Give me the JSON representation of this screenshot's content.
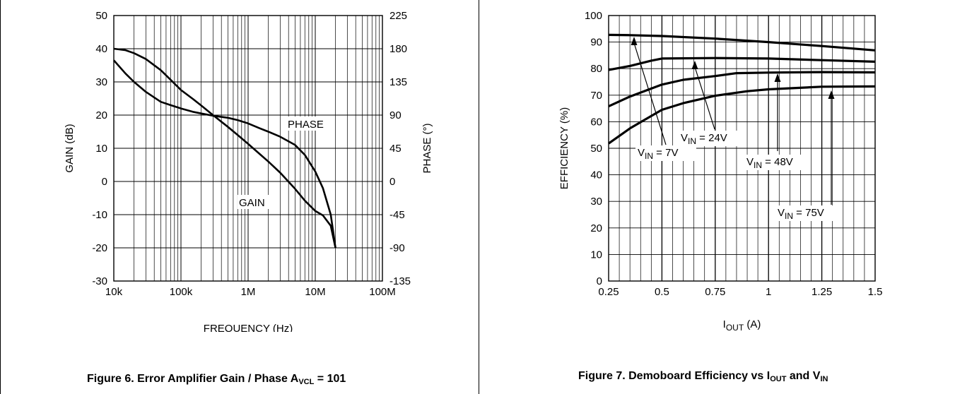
{
  "chart_data": [
    {
      "type": "line",
      "title": "Figure 6. Error Amplifier Gain / Phase A",
      "title_sub": "VCL",
      "title_tail": " = 101",
      "xlabel": "FREQUENCY (Hz)",
      "ylabel": "GAIN (dB)",
      "ylabel_right": "PHASE (°)",
      "xscale": "log",
      "xlim": [
        10000,
        100000000
      ],
      "ylim": [
        -30,
        50
      ],
      "ylim_right": [
        -135,
        225
      ],
      "grid": true,
      "x_tick_labels": [
        "10k",
        "100k",
        "1M",
        "10M",
        "100M"
      ],
      "y_tick_labels": [
        "50",
        "40",
        "30",
        "20",
        "10",
        "0",
        "-10",
        "-20",
        "-30"
      ],
      "y_right_tick_labels": [
        "225",
        "180",
        "135",
        "90",
        "45",
        "0",
        "-45",
        "-90",
        "-135"
      ],
      "series": [
        {
          "name": "GAIN",
          "axis": "left",
          "x": [
            10000,
            15000,
            20000,
            30000,
            50000,
            70000,
            100000,
            150000,
            200000,
            300000,
            500000,
            700000,
            1000000,
            1500000,
            2000000,
            3000000,
            5000000,
            7000000,
            10000000,
            13000000,
            17000000,
            20000000
          ],
          "y": [
            36.5,
            32.5,
            30,
            27,
            24,
            23,
            22,
            21,
            20.5,
            19.8,
            19.2,
            18.5,
            17.5,
            16,
            15,
            13.5,
            11,
            8,
            3,
            -2,
            -10,
            -20
          ]
        },
        {
          "name": "PHASE",
          "axis": "right",
          "x": [
            10000,
            15000,
            20000,
            30000,
            50000,
            70000,
            100000,
            150000,
            200000,
            300000,
            500000,
            700000,
            1000000,
            1500000,
            2000000,
            3000000,
            5000000,
            7000000,
            10000000,
            13000000,
            17000000,
            20000000
          ],
          "y": [
            180,
            178,
            174,
            166,
            151,
            138,
            124,
            112,
            103,
            90,
            74,
            63,
            51,
            37,
            27,
            12,
            -10,
            -26,
            -40,
            -46,
            -60,
            -90
          ]
        }
      ],
      "annotations": [
        "PHASE",
        "GAIN"
      ]
    },
    {
      "type": "line",
      "title": "Figure 7. Demoboard Efficiency vs I",
      "title_sub": "OUT",
      "title_mid": " and V",
      "title_sub2": "IN",
      "xlabel_main": "I",
      "xlabel_sub": "OUT",
      "xlabel_tail": " (A)",
      "ylabel": "EFFICIENCY (%)",
      "xlim": [
        0.25,
        1.5
      ],
      "ylim": [
        0,
        100
      ],
      "grid": true,
      "x_tick_labels": [
        "0.25",
        "0.5",
        "0.75",
        "1",
        "1.25",
        "1.5"
      ],
      "y_tick_labels": [
        "100",
        "90",
        "80",
        "70",
        "60",
        "50",
        "40",
        "30",
        "20",
        "10",
        "0"
      ],
      "series": [
        {
          "label_main": "V",
          "label_sub": "IN",
          "label_tail": " = 7V",
          "x": [
            0.25,
            0.35,
            0.5,
            0.75,
            1.0,
            1.25,
            1.5
          ],
          "y": [
            92.7,
            92.6,
            92.3,
            91.3,
            90.0,
            88.5,
            86.9
          ]
        },
        {
          "label_main": "V",
          "label_sub": "IN",
          "label_tail": " = 24V",
          "x": [
            0.25,
            0.35,
            0.45,
            0.5,
            0.75,
            1.0,
            1.25,
            1.5
          ],
          "y": [
            79.5,
            81.0,
            83.0,
            83.8,
            84.0,
            83.8,
            83.2,
            82.6
          ]
        },
        {
          "label_main": "V",
          "label_sub": "IN",
          "label_tail": " = 48V",
          "x": [
            0.25,
            0.35,
            0.5,
            0.6,
            0.75,
            0.85,
            1.0,
            1.25,
            1.5
          ],
          "y": [
            65.8,
            69.5,
            74.0,
            75.8,
            77.2,
            78.3,
            78.5,
            78.7,
            78.6
          ]
        },
        {
          "label_main": "V",
          "label_sub": "IN",
          "label_tail": " = 75V",
          "x": [
            0.25,
            0.35,
            0.5,
            0.6,
            0.75,
            0.9,
            1.0,
            1.25,
            1.5
          ],
          "y": [
            51.8,
            57.5,
            64.5,
            67.0,
            69.8,
            71.5,
            72.2,
            73.2,
            73.3
          ]
        }
      ]
    }
  ]
}
